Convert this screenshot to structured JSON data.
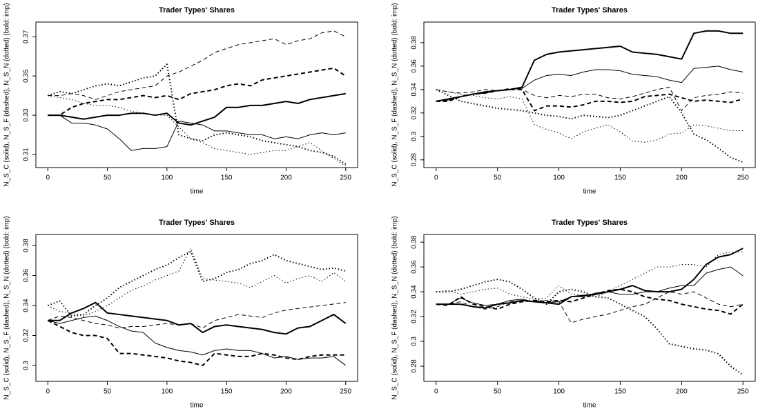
{
  "chart_data": [
    {
      "type": "line",
      "title": "Trader Types' Shares",
      "xlabel": "time",
      "ylabel": "N_S_C (solid), N_S_F (dashed), N_S_N (dotted) (bold: imp)",
      "x": [
        0,
        10,
        20,
        30,
        40,
        50,
        60,
        70,
        80,
        90,
        100,
        110,
        120,
        130,
        140,
        150,
        160,
        170,
        180,
        190,
        200,
        210,
        220,
        230,
        240,
        250
      ],
      "xlim": [
        -10,
        260
      ],
      "xticks": [
        0,
        50,
        100,
        150,
        200,
        250
      ],
      "ylim": [
        0.3033,
        0.3775
      ],
      "yticks": [
        0.31,
        0.33,
        0.35,
        0.37
      ],
      "series": [
        {
          "color": "#000000",
          "width": 2,
          "dash": "solid",
          "values": [
            0.33,
            0.33,
            0.329,
            0.328,
            0.329,
            0.33,
            0.33,
            0.331,
            0.331,
            0.33,
            0.331,
            0.326,
            0.325,
            0.327,
            0.329,
            0.334,
            0.334,
            0.335,
            0.335,
            0.336,
            0.337,
            0.336,
            0.338,
            0.339,
            0.34,
            0.341
          ]
        },
        {
          "color": "#000000",
          "width": 1,
          "dash": "solid",
          "values": [
            0.33,
            0.33,
            0.326,
            0.326,
            0.325,
            0.323,
            0.318,
            0.312,
            0.313,
            0.313,
            0.314,
            0.327,
            0.326,
            0.325,
            0.322,
            0.322,
            0.321,
            0.32,
            0.32,
            0.318,
            0.319,
            0.318,
            0.32,
            0.321,
            0.32,
            0.321
          ]
        },
        {
          "color": "#000000",
          "width": 2,
          "dash": "dashed",
          "values": [
            0.33,
            0.33,
            0.334,
            0.336,
            0.337,
            0.338,
            0.338,
            0.339,
            0.34,
            0.339,
            0.34,
            0.338,
            0.341,
            0.342,
            0.343,
            0.345,
            0.346,
            0.345,
            0.348,
            0.349,
            0.35,
            0.351,
            0.352,
            0.353,
            0.354,
            0.35
          ]
        },
        {
          "color": "#000000",
          "width": 1,
          "dash": "dashed",
          "values": [
            0.34,
            0.34,
            0.341,
            0.34,
            0.338,
            0.34,
            0.342,
            0.343,
            0.344,
            0.345,
            0.35,
            0.352,
            0.355,
            0.358,
            0.362,
            0.364,
            0.366,
            0.367,
            0.368,
            0.369,
            0.366,
            0.368,
            0.369,
            0.372,
            0.373,
            0.37
          ]
        },
        {
          "color": "#000000",
          "width": 2,
          "dash": "dotted",
          "values": [
            0.34,
            0.342,
            0.341,
            0.343,
            0.345,
            0.346,
            0.345,
            0.347,
            0.349,
            0.35,
            0.356,
            0.32,
            0.318,
            0.317,
            0.32,
            0.321,
            0.32,
            0.319,
            0.317,
            0.316,
            0.315,
            0.314,
            0.312,
            0.311,
            0.309,
            0.305
          ]
        },
        {
          "color": "#000000",
          "width": 1,
          "dash": "dotted",
          "values": [
            0.34,
            0.339,
            0.338,
            0.336,
            0.335,
            0.335,
            0.334,
            0.332,
            0.331,
            0.33,
            0.33,
            0.324,
            0.318,
            0.316,
            0.313,
            0.312,
            0.311,
            0.31,
            0.311,
            0.312,
            0.312,
            0.314,
            0.316,
            0.312,
            0.308,
            0.304
          ]
        }
      ]
    },
    {
      "type": "line",
      "title": "Trader Types' Shares",
      "xlabel": "time",
      "ylabel": "N_S_C (solid), N_S_F (dashed), N_S_N (dotted) (bold: imp)",
      "x": [
        0,
        10,
        20,
        30,
        40,
        50,
        60,
        70,
        80,
        90,
        100,
        110,
        120,
        130,
        140,
        150,
        160,
        170,
        180,
        190,
        200,
        210,
        220,
        230,
        240,
        250
      ],
      "xlim": [
        -10,
        260
      ],
      "xticks": [
        0,
        50,
        100,
        150,
        200,
        250
      ],
      "ylim": [
        0.2734,
        0.3976
      ],
      "yticks": [
        0.28,
        0.3,
        0.32,
        0.34,
        0.36,
        0.38
      ],
      "series": [
        {
          "color": "#000000",
          "width": 2,
          "dash": "solid",
          "values": [
            0.33,
            0.332,
            0.334,
            0.336,
            0.338,
            0.339,
            0.34,
            0.342,
            0.365,
            0.37,
            0.372,
            0.373,
            0.374,
            0.375,
            0.376,
            0.377,
            0.372,
            0.371,
            0.37,
            0.368,
            0.366,
            0.388,
            0.39,
            0.39,
            0.388,
            0.388
          ]
        },
        {
          "color": "#000000",
          "width": 1,
          "dash": "solid",
          "values": [
            0.33,
            0.331,
            0.334,
            0.336,
            0.337,
            0.339,
            0.34,
            0.341,
            0.348,
            0.352,
            0.353,
            0.352,
            0.355,
            0.357,
            0.357,
            0.356,
            0.353,
            0.352,
            0.351,
            0.348,
            0.346,
            0.358,
            0.359,
            0.36,
            0.357,
            0.355
          ]
        },
        {
          "color": "#000000",
          "width": 2,
          "dash": "dashed",
          "values": [
            0.33,
            0.33,
            0.334,
            0.336,
            0.337,
            0.339,
            0.34,
            0.34,
            0.322,
            0.326,
            0.326,
            0.325,
            0.327,
            0.33,
            0.33,
            0.329,
            0.33,
            0.334,
            0.335,
            0.336,
            0.333,
            0.33,
            0.331,
            0.33,
            0.329,
            0.332
          ]
        },
        {
          "color": "#000000",
          "width": 1,
          "dash": "dashed",
          "values": [
            0.34,
            0.338,
            0.337,
            0.338,
            0.34,
            0.339,
            0.341,
            0.34,
            0.335,
            0.333,
            0.335,
            0.334,
            0.336,
            0.336,
            0.333,
            0.332,
            0.334,
            0.337,
            0.34,
            0.342,
            0.322,
            0.333,
            0.335,
            0.336,
            0.338,
            0.337
          ]
        },
        {
          "color": "#000000",
          "width": 2,
          "dash": "dotted",
          "values": [
            0.34,
            0.335,
            0.33,
            0.328,
            0.326,
            0.324,
            0.323,
            0.322,
            0.32,
            0.318,
            0.317,
            0.315,
            0.318,
            0.317,
            0.316,
            0.318,
            0.322,
            0.326,
            0.33,
            0.334,
            0.32,
            0.302,
            0.297,
            0.29,
            0.282,
            0.278
          ]
        },
        {
          "color": "#000000",
          "width": 1,
          "dash": "dotted",
          "values": [
            0.34,
            0.338,
            0.336,
            0.335,
            0.333,
            0.332,
            0.334,
            0.332,
            0.31,
            0.306,
            0.303,
            0.298,
            0.304,
            0.307,
            0.31,
            0.304,
            0.296,
            0.295,
            0.297,
            0.302,
            0.303,
            0.31,
            0.309,
            0.307,
            0.305,
            0.305
          ]
        }
      ]
    },
    {
      "type": "line",
      "title": "Trader Types' Shares",
      "xlabel": "time",
      "ylabel": "N_S_C (solid), N_S_F (dashed), N_S_N (dotted) (bold: imp)",
      "x": [
        0,
        10,
        20,
        30,
        40,
        50,
        60,
        70,
        80,
        90,
        100,
        110,
        120,
        130,
        140,
        150,
        160,
        170,
        180,
        190,
        200,
        210,
        220,
        230,
        240,
        250
      ],
      "xlim": [
        -10,
        260
      ],
      "xticks": [
        0,
        50,
        100,
        150,
        200,
        250
      ],
      "ylim": [
        0.2894,
        0.3874
      ],
      "yticks": [
        0.3,
        0.32,
        0.34,
        0.36,
        0.38
      ],
      "series": [
        {
          "color": "#000000",
          "width": 2,
          "dash": "solid",
          "values": [
            0.33,
            0.33,
            0.335,
            0.338,
            0.342,
            0.335,
            0.334,
            0.333,
            0.332,
            0.331,
            0.33,
            0.327,
            0.328,
            0.322,
            0.326,
            0.327,
            0.326,
            0.325,
            0.324,
            0.322,
            0.321,
            0.325,
            0.326,
            0.33,
            0.334,
            0.328
          ]
        },
        {
          "color": "#000000",
          "width": 1,
          "dash": "solid",
          "values": [
            0.33,
            0.328,
            0.33,
            0.332,
            0.333,
            0.33,
            0.326,
            0.323,
            0.322,
            0.315,
            0.312,
            0.31,
            0.309,
            0.307,
            0.31,
            0.311,
            0.31,
            0.31,
            0.308,
            0.305,
            0.306,
            0.304,
            0.305,
            0.305,
            0.306,
            0.3
          ]
        },
        {
          "color": "#000000",
          "width": 2,
          "dash": "dashed",
          "values": [
            0.33,
            0.326,
            0.322,
            0.32,
            0.32,
            0.318,
            0.308,
            0.308,
            0.307,
            0.306,
            0.305,
            0.303,
            0.302,
            0.3,
            0.308,
            0.307,
            0.306,
            0.306,
            0.308,
            0.307,
            0.305,
            0.304,
            0.306,
            0.307,
            0.307,
            0.307
          ]
        },
        {
          "color": "#000000",
          "width": 1,
          "dash": "dashed",
          "values": [
            0.33,
            0.333,
            0.332,
            0.33,
            0.328,
            0.327,
            0.325,
            0.326,
            0.326,
            0.327,
            0.328,
            0.327,
            0.328,
            0.325,
            0.33,
            0.332,
            0.334,
            0.333,
            0.332,
            0.335,
            0.337,
            0.338,
            0.339,
            0.34,
            0.341,
            0.342
          ]
        },
        {
          "color": "#000000",
          "width": 2,
          "dash": "dotted",
          "values": [
            0.34,
            0.343,
            0.333,
            0.334,
            0.34,
            0.345,
            0.352,
            0.356,
            0.36,
            0.364,
            0.367,
            0.372,
            0.376,
            0.356,
            0.358,
            0.362,
            0.364,
            0.368,
            0.37,
            0.374,
            0.37,
            0.368,
            0.366,
            0.364,
            0.365,
            0.363
          ]
        },
        {
          "color": "#000000",
          "width": 1,
          "dash": "dotted",
          "values": [
            0.34,
            0.336,
            0.335,
            0.333,
            0.336,
            0.34,
            0.345,
            0.35,
            0.353,
            0.357,
            0.36,
            0.363,
            0.378,
            0.358,
            0.357,
            0.356,
            0.355,
            0.352,
            0.356,
            0.36,
            0.355,
            0.358,
            0.36,
            0.356,
            0.362,
            0.356
          ]
        }
      ]
    },
    {
      "type": "line",
      "title": "Trader Types' Shares",
      "xlabel": "time",
      "ylabel": "N_S_C (solid), N_S_F (dashed), N_S_N (dotted) (bold: imp)",
      "x": [
        0,
        10,
        20,
        30,
        40,
        50,
        60,
        70,
        80,
        90,
        100,
        110,
        120,
        130,
        140,
        150,
        160,
        170,
        180,
        190,
        200,
        210,
        220,
        230,
        240,
        250
      ],
      "xlim": [
        -10,
        260
      ],
      "xticks": [
        0,
        50,
        100,
        150,
        200,
        250
      ],
      "ylim": [
        0.2678,
        0.3862
      ],
      "yticks": [
        0.28,
        0.3,
        0.32,
        0.34,
        0.36,
        0.38
      ],
      "series": [
        {
          "color": "#000000",
          "width": 2,
          "dash": "solid",
          "values": [
            0.33,
            0.33,
            0.33,
            0.328,
            0.327,
            0.33,
            0.331,
            0.333,
            0.332,
            0.331,
            0.33,
            0.336,
            0.337,
            0.338,
            0.34,
            0.342,
            0.345,
            0.341,
            0.34,
            0.34,
            0.342,
            0.35,
            0.362,
            0.368,
            0.37,
            0.375
          ]
        },
        {
          "color": "#000000",
          "width": 1,
          "dash": "solid",
          "values": [
            0.33,
            0.33,
            0.335,
            0.331,
            0.329,
            0.33,
            0.333,
            0.334,
            0.332,
            0.331,
            0.332,
            0.336,
            0.336,
            0.339,
            0.34,
            0.338,
            0.338,
            0.34,
            0.34,
            0.343,
            0.345,
            0.345,
            0.355,
            0.358,
            0.36,
            0.353
          ]
        },
        {
          "color": "#000000",
          "width": 2,
          "dash": "dashed",
          "values": [
            0.33,
            0.329,
            0.336,
            0.33,
            0.328,
            0.326,
            0.33,
            0.332,
            0.333,
            0.332,
            0.333,
            0.332,
            0.335,
            0.338,
            0.341,
            0.342,
            0.34,
            0.336,
            0.334,
            0.333,
            0.33,
            0.328,
            0.326,
            0.325,
            0.322,
            0.33
          ]
        },
        {
          "color": "#000000",
          "width": 1,
          "dash": "dashed",
          "values": [
            0.33,
            0.33,
            0.332,
            0.328,
            0.326,
            0.328,
            0.332,
            0.333,
            0.332,
            0.333,
            0.332,
            0.315,
            0.318,
            0.32,
            0.322,
            0.325,
            0.328,
            0.33,
            0.335,
            0.34,
            0.338,
            0.34,
            0.335,
            0.33,
            0.328,
            0.33
          ]
        },
        {
          "color": "#000000",
          "width": 2,
          "dash": "dotted",
          "values": [
            0.34,
            0.34,
            0.342,
            0.345,
            0.348,
            0.35,
            0.348,
            0.342,
            0.335,
            0.33,
            0.34,
            0.342,
            0.34,
            0.336,
            0.335,
            0.33,
            0.325,
            0.32,
            0.31,
            0.298,
            0.296,
            0.294,
            0.293,
            0.29,
            0.28,
            0.273
          ]
        },
        {
          "color": "#000000",
          "width": 1,
          "dash": "dotted",
          "values": [
            0.34,
            0.341,
            0.338,
            0.34,
            0.342,
            0.343,
            0.338,
            0.336,
            0.334,
            0.335,
            0.345,
            0.338,
            0.337,
            0.336,
            0.34,
            0.345,
            0.35,
            0.355,
            0.36,
            0.36,
            0.362,
            0.362,
            0.36,
            0.37,
            0.372,
            0.372
          ]
        }
      ]
    }
  ]
}
